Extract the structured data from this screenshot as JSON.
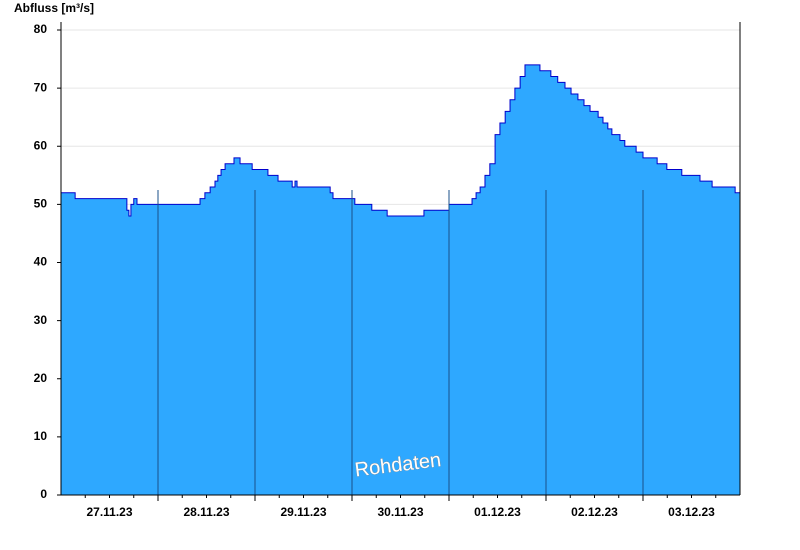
{
  "chart_data": {
    "type": "area",
    "y_label": "Abfluss [m³/s]",
    "annotation": "Rohdaten",
    "series": [
      {
        "name": "Abfluss",
        "color": "#2ea8ff",
        "line_color": "#0000cc",
        "x": [
          0,
          3.5,
          15.6,
          16.3,
          16.8,
          17.3,
          18,
          18.8,
          33.6,
          34.4,
          35.6,
          36.9,
          38.1,
          38.8,
          39.6,
          40.6,
          42.8,
          44.3,
          47.3,
          51.2,
          53.7,
          57.2,
          57.9,
          58.4,
          66.6,
          67.3,
          72.7,
          76.9,
          80.7,
          89.8,
          96,
          101.7,
          102.7,
          103.7,
          104.9,
          106.1,
          107.4,
          108.6,
          109.9,
          111.1,
          112.3,
          113.6,
          114.8,
          118.5,
          121.2,
          122.9,
          124.7,
          126.2,
          127.9,
          129.4,
          130.9,
          132.9,
          134.1,
          135.3,
          136.3,
          138.3,
          139.5,
          142.3,
          144,
          147.5,
          149.9,
          153.6,
          158.1,
          161.1,
          166.8,
          168
        ],
        "values": [
          52,
          51,
          51,
          49,
          48,
          50,
          51,
          50,
          50,
          51,
          52,
          53,
          54,
          55,
          56,
          57,
          58,
          57,
          56,
          55,
          54,
          53,
          54,
          53,
          52,
          51,
          50,
          49,
          48,
          49,
          50,
          51,
          52,
          53,
          55,
          57,
          62,
          64,
          66,
          68,
          70,
          72,
          74,
          73,
          72,
          71,
          70,
          69,
          68,
          67,
          66,
          65,
          64,
          63,
          62,
          61,
          60,
          59,
          58,
          57,
          56,
          55,
          54,
          53,
          52,
          52
        ]
      }
    ],
    "xlim": [
      0,
      168
    ],
    "xticks": [
      {
        "value": 12,
        "label": "27.11.23"
      },
      {
        "value": 36,
        "label": "28.11.23"
      },
      {
        "value": 60,
        "label": "29.11.23"
      },
      {
        "value": 84,
        "label": "30.11.23"
      },
      {
        "value": 108,
        "label": "01.12.23"
      },
      {
        "value": 132,
        "label": "02.12.23"
      },
      {
        "value": 156,
        "label": "03.12.23"
      }
    ],
    "xgrid": [
      24,
      48,
      72,
      96,
      120,
      144
    ],
    "xminor": [
      6,
      18,
      30,
      42,
      54,
      66,
      78,
      90,
      102,
      114,
      126,
      138,
      150,
      162
    ],
    "ylim": [
      0,
      80
    ],
    "yticks": [
      0,
      10,
      20,
      30,
      40,
      50,
      60,
      70,
      80
    ],
    "grid": true
  }
}
